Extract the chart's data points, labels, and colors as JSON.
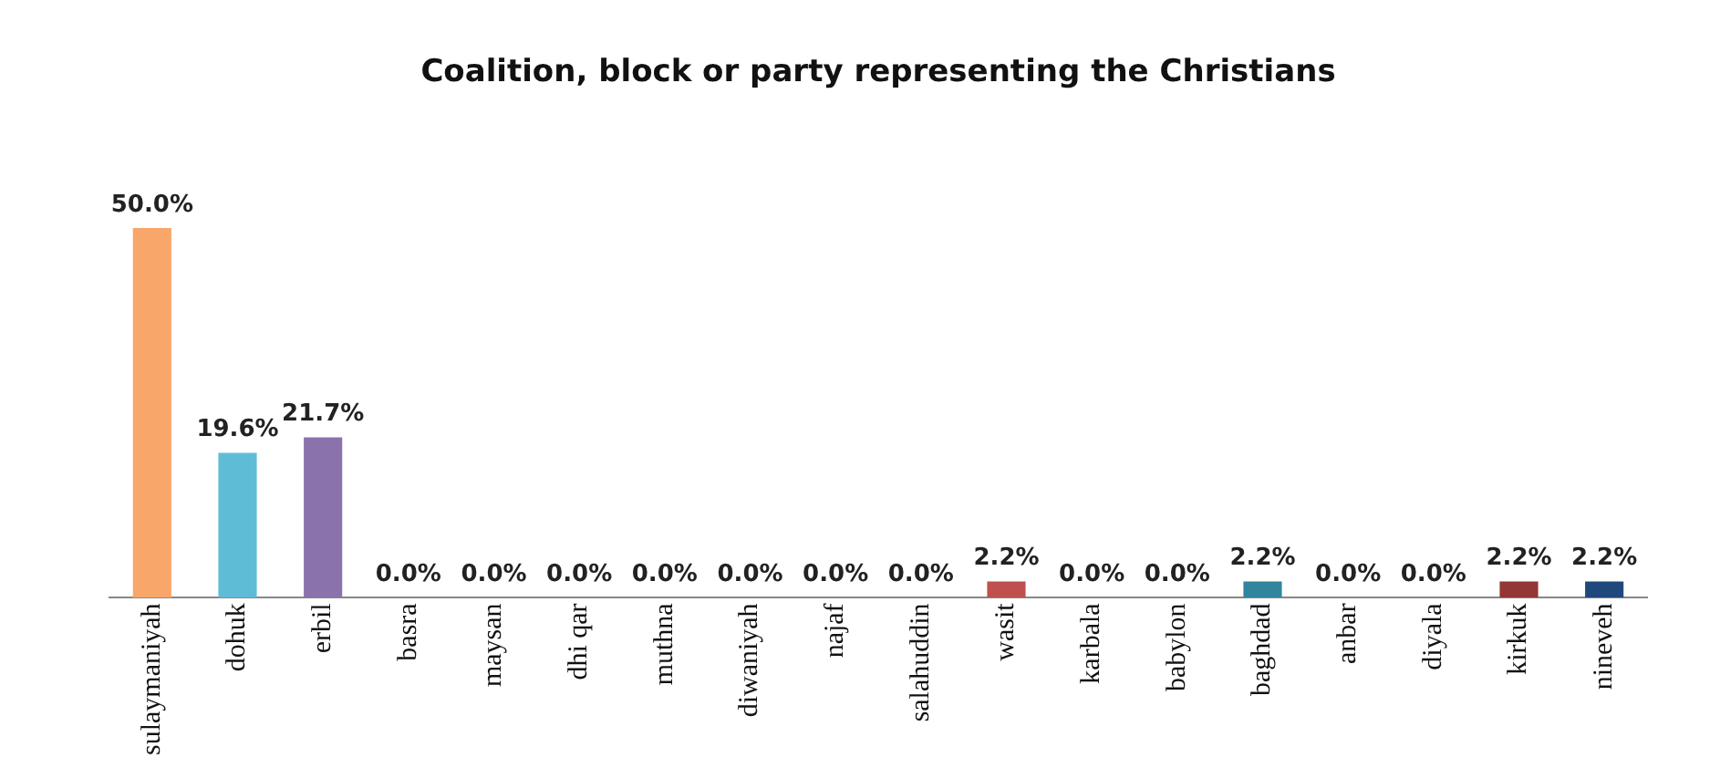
{
  "chart_data": {
    "type": "bar",
    "title": "Coalition, block or party representing the Christians",
    "categories": [
      "sulaymaniyah",
      "dohuk",
      "erbil",
      "basra",
      "maysan",
      "dhi qar",
      "muthna",
      "diwaniyah",
      "najaf",
      "salahuddin",
      "wasit",
      "karbala",
      "babylon",
      "baghdad",
      "anbar",
      "diyala",
      "kirkuk",
      "nineveh"
    ],
    "values": [
      50.0,
      19.6,
      21.7,
      0.0,
      0.0,
      0.0,
      0.0,
      0.0,
      0.0,
      0.0,
      2.2,
      0.0,
      0.0,
      2.2,
      0.0,
      0.0,
      2.2,
      2.2
    ],
    "value_labels": [
      "50.0%",
      "19.6%",
      "21.7%",
      "0.0%",
      "0.0%",
      "0.0%",
      "0.0%",
      "0.0%",
      "0.0%",
      "0.0%",
      "2.2%",
      "0.0%",
      "0.0%",
      "2.2%",
      "0.0%",
      "0.0%",
      "2.2%",
      "2.2%"
    ],
    "colors": [
      "#f9a66a",
      "#5fbcd6",
      "#8a72ad",
      "#9bbb59",
      "#c0504d",
      "#4f81bd",
      "#f79646",
      "#4bacc6",
      "#8064a2",
      "#9bbb59",
      "#c0504d",
      "#4f81bd",
      "#f79646",
      "#31859c",
      "#604a7b",
      "#77933c",
      "#943634",
      "#1f497d"
    ],
    "grid": false,
    "legend": false
  }
}
